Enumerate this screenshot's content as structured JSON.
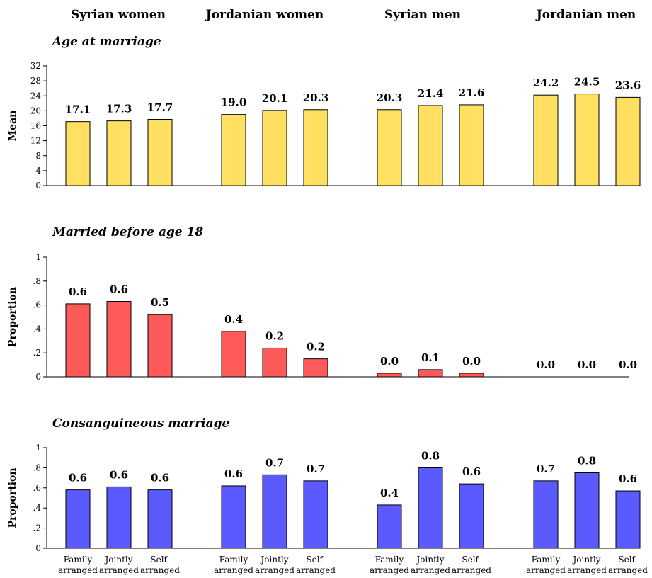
{
  "groups": [
    "Syrian women",
    "Jordanian women",
    "Syrian men",
    "Jordanian men"
  ],
  "x_categories": [
    [
      "Family",
      "arranged"
    ],
    [
      "Jointly",
      "arranged"
    ],
    [
      "Self-",
      "arranged"
    ]
  ],
  "chart_data": [
    {
      "type": "bar",
      "title": "Age at marriage",
      "ylabel": "Mean",
      "ylim": [
        0,
        32
      ],
      "yticks": [
        "0",
        "4",
        "8",
        "12",
        "16",
        "20",
        "24",
        "28",
        "32"
      ],
      "ytick_values": [
        0,
        4,
        8,
        12,
        16,
        20,
        24,
        28,
        32
      ],
      "color": "#FFE060",
      "series": [
        {
          "group": "Syrian women",
          "values": [
            17.1,
            17.3,
            17.7
          ],
          "labels": [
            "17.1",
            "17.3",
            "17.7"
          ]
        },
        {
          "group": "Jordanian women",
          "values": [
            19.0,
            20.1,
            20.3
          ],
          "labels": [
            "19.0",
            "20.1",
            "20.3"
          ]
        },
        {
          "group": "Syrian men",
          "values": [
            20.3,
            21.4,
            21.6
          ],
          "labels": [
            "20.3",
            "21.4",
            "21.6"
          ]
        },
        {
          "group": "Jordanian men",
          "values": [
            24.2,
            24.5,
            23.6
          ],
          "labels": [
            "24.2",
            "24.5",
            "23.6"
          ]
        }
      ]
    },
    {
      "type": "bar",
      "title": "Married before age 18",
      "ylabel": "Proportion",
      "ylim": [
        0,
        1
      ],
      "yticks": [
        "0",
        ".2",
        ".4",
        ".6",
        ".8",
        "1"
      ],
      "ytick_values": [
        0,
        0.2,
        0.4,
        0.6,
        0.8,
        1
      ],
      "color": "#FF5A5A",
      "series": [
        {
          "group": "Syrian women",
          "values": [
            0.61,
            0.63,
            0.52
          ],
          "labels": [
            "0.6",
            "0.6",
            "0.5"
          ]
        },
        {
          "group": "Jordanian women",
          "values": [
            0.38,
            0.24,
            0.15
          ],
          "labels": [
            "0.4",
            "0.2",
            "0.2"
          ]
        },
        {
          "group": "Syrian men",
          "values": [
            0.03,
            0.06,
            0.03
          ],
          "labels": [
            "0.0",
            "0.1",
            "0.0"
          ]
        },
        {
          "group": "Jordanian men",
          "values": [
            0.0,
            0.0,
            0.0
          ],
          "labels": [
            "0.0",
            "0.0",
            "0.0"
          ]
        }
      ]
    },
    {
      "type": "bar",
      "title": "Consanguineous marriage",
      "ylabel": "Proportion",
      "ylim": [
        0,
        1
      ],
      "yticks": [
        "0",
        ".2",
        ".4",
        ".6",
        ".8",
        "1"
      ],
      "ytick_values": [
        0,
        0.2,
        0.4,
        0.6,
        0.8,
        1
      ],
      "color": "#5A5AFF",
      "series": [
        {
          "group": "Syrian women",
          "values": [
            0.58,
            0.61,
            0.58
          ],
          "labels": [
            "0.6",
            "0.6",
            "0.6"
          ]
        },
        {
          "group": "Jordanian women",
          "values": [
            0.62,
            0.73,
            0.67
          ],
          "labels": [
            "0.6",
            "0.7",
            "0.7"
          ]
        },
        {
          "group": "Syrian men",
          "values": [
            0.43,
            0.8,
            0.64
          ],
          "labels": [
            "0.4",
            "0.8",
            "0.6"
          ]
        },
        {
          "group": "Jordanian men",
          "values": [
            0.67,
            0.75,
            0.57
          ],
          "labels": [
            "0.7",
            "0.8",
            "0.6"
          ]
        }
      ]
    }
  ]
}
